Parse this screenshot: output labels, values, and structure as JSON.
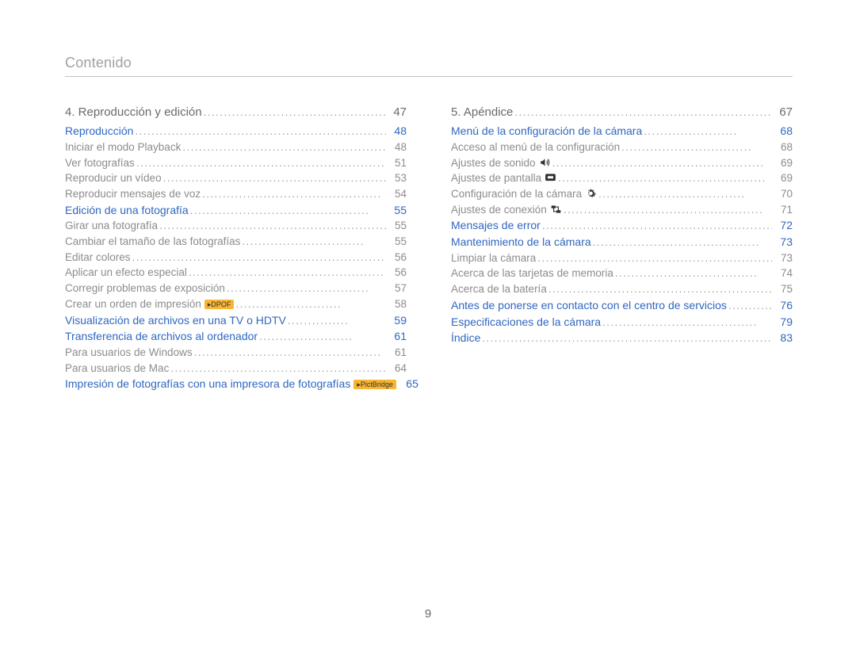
{
  "header": {
    "title": "Contenido"
  },
  "footer": {
    "page": "9"
  },
  "colors": {
    "section": "#2f67c1",
    "chapter": "#6a6a6a",
    "sub": "#8c8c8c",
    "badge_dpof": "#f7b531",
    "badge_pict": "#f7b531"
  },
  "left": [
    {
      "level": "chapter",
      "text": "4. Reproducción y edición",
      "leader": "................................................",
      "page": "47"
    },
    {
      "level": "section",
      "text": "Reproducción",
      "leader": "...............................................................",
      "page": "48"
    },
    {
      "level": "sub",
      "text": "Iniciar el modo Playback",
      "leader": "..................................................",
      "page": "48"
    },
    {
      "level": "sub",
      "text": "Ver fotografías",
      "leader": "...................................................................",
      "page": "51"
    },
    {
      "level": "sub",
      "text": "Reproducir un vídeo",
      "leader": "..........................................................",
      "page": "53"
    },
    {
      "level": "sub",
      "text": "Reproducir mensajes de voz",
      "leader": "............................................",
      "page": "54"
    },
    {
      "level": "section",
      "text": "Edición de una fotografía",
      "leader": "............................................",
      "page": "55"
    },
    {
      "level": "sub",
      "text": "Girar una fotografía",
      "leader": "...........................................................",
      "page": "55"
    },
    {
      "level": "sub",
      "text": "Cambiar el tamaño de las fotografías",
      "leader": "..............................",
      "page": "55"
    },
    {
      "level": "sub",
      "text": "Editar colores",
      "leader": ".....................................................................",
      "page": "56"
    },
    {
      "level": "sub",
      "text": "Aplicar un efecto especial",
      "leader": "................................................",
      "page": "56"
    },
    {
      "level": "sub",
      "text": "Corregir problemas de exposición",
      "leader": "...................................",
      "page": "57"
    },
    {
      "level": "sub",
      "text": "Crear un orden de impresión",
      "badge": "dpof",
      "badge_text": "▸DPOF",
      "leader": "..........................",
      "page": "58"
    },
    {
      "level": "section",
      "text": "Visualización de archivos en una TV o HDTV",
      "leader": "...............",
      "page": "59"
    },
    {
      "level": "section",
      "text": "Transferencia de archivos al ordenador",
      "leader": ".......................",
      "page": "61"
    },
    {
      "level": "sub",
      "text": "Para usuarios de Windows",
      "leader": "..............................................",
      "page": "61"
    },
    {
      "level": "sub",
      "text": "Para usuarios de Mac",
      "leader": ".......................................................",
      "page": "64"
    },
    {
      "level": "section",
      "text": "Impresión de fotografías con una impresora de fotografías",
      "multi": true,
      "badge": "pict",
      "badge_text": "▸PictBridge",
      "leader": "...............................................",
      "page": "65"
    }
  ],
  "right": [
    {
      "level": "chapter",
      "text": "5. Apéndice",
      "leader": "..........................................................................",
      "page": "67"
    },
    {
      "level": "section",
      "text": "Menú de la configuración de la cámara",
      "leader": ".......................",
      "page": "68"
    },
    {
      "level": "sub",
      "text": "Acceso al menú de la configuración",
      "leader": "................................",
      "page": "68"
    },
    {
      "level": "sub",
      "text": "Ajustes de sonido",
      "icon": "sound",
      "leader": "....................................................",
      "page": "69"
    },
    {
      "level": "sub",
      "text": "Ajustes de pantalla",
      "icon": "display",
      "leader": "...................................................",
      "page": "69"
    },
    {
      "level": "sub",
      "text": "Configuración de la cámara",
      "icon": "gear",
      "leader": "....................................",
      "page": "70"
    },
    {
      "level": "sub",
      "text": "Ajustes de conexión",
      "icon": "connect",
      "leader": ".................................................",
      "page": "71"
    },
    {
      "level": "section",
      "text": "Mensajes de error",
      "leader": ".........................................................",
      "page": "72"
    },
    {
      "level": "section",
      "text": "Mantenimiento de la cámara",
      "leader": ".........................................",
      "page": "73"
    },
    {
      "level": "sub",
      "text": "Limpiar la cámara",
      "leader": "..............................................................",
      "page": "73"
    },
    {
      "level": "sub",
      "text": "Acerca de las tarjetas de memoria",
      "leader": "...................................",
      "page": "74"
    },
    {
      "level": "sub",
      "text": "Acerca de la batería",
      "leader": "..........................................................",
      "page": "75"
    },
    {
      "level": "section",
      "text": "Antes de ponerse en contacto con el centro de servicios",
      "multi": true,
      "leader": "..................................................................",
      "page": "76"
    },
    {
      "level": "section",
      "text": "Especificaciones de la cámara",
      "leader": "......................................",
      "page": "79"
    },
    {
      "level": "section",
      "text": "Índice",
      "leader": "..........................................................................",
      "page": "83"
    }
  ],
  "icons": {
    "sound_title": "sound-icon",
    "display_title": "display-icon",
    "gear_title": "gear-icon",
    "connect_title": "connect-icon"
  }
}
